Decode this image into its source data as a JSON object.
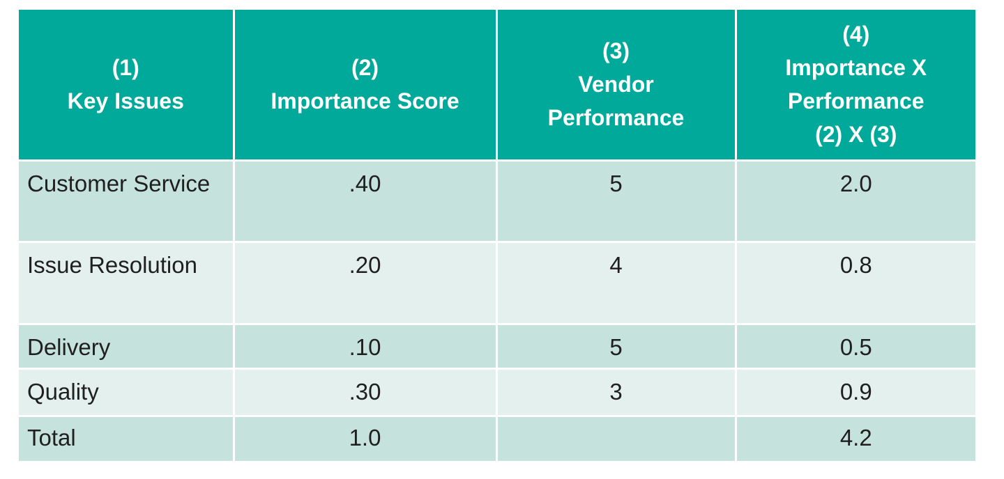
{
  "table": {
    "headers": [
      {
        "lines": [
          "(1)",
          "Key Issues"
        ]
      },
      {
        "lines": [
          "(2)",
          "Importance Score"
        ]
      },
      {
        "lines": [
          "(3)",
          "Vendor",
          "Performance"
        ]
      },
      {
        "lines": [
          "(4)",
          "Importance X",
          "Performance",
          "(2) X (3)"
        ]
      }
    ],
    "rows": [
      {
        "issue": "Customer Service",
        "importance": ".40",
        "performance": "5",
        "product": "2.0"
      },
      {
        "issue": "Issue Resolution",
        "importance": ".20",
        "performance": "4",
        "product": "0.8"
      },
      {
        "issue": "Delivery",
        "importance": ".10",
        "performance": "5",
        "product": "0.5"
      },
      {
        "issue": "Quality",
        "importance": ".30",
        "performance": "3",
        "product": "0.9"
      },
      {
        "issue": "Total",
        "importance": "1.0",
        "performance": "",
        "product": "4.2"
      }
    ]
  },
  "colors": {
    "header_bg": "#00a99a",
    "row_dark": "#c6e2dc",
    "row_light": "#e3f0ed"
  }
}
